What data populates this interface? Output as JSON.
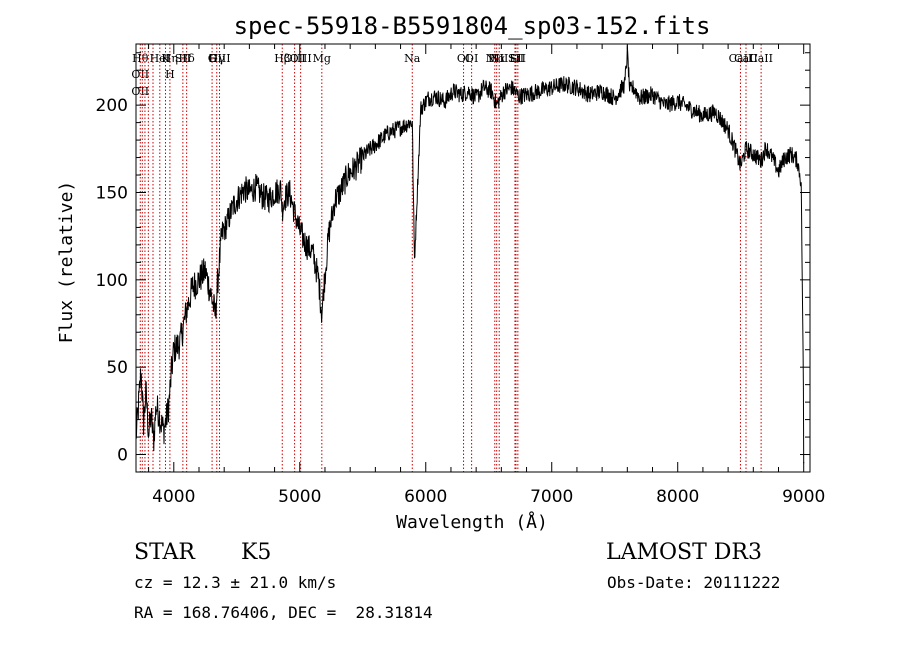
{
  "chart_data": {
    "type": "line",
    "title": "spec-55918-B5591804_sp03-152.fits",
    "xlabel": "Wavelength (Å)",
    "ylabel": "Flux (relative)",
    "xlim": [
      3700,
      9050
    ],
    "ylim": [
      -10,
      235
    ],
    "xticks": [
      4000,
      5000,
      6000,
      7000,
      8000,
      9000
    ],
    "yticks": [
      0,
      50,
      100,
      150,
      200
    ],
    "grid": false,
    "line_color": "#000000",
    "marker_color": "#cc0000",
    "series": [
      {
        "x": [
          3700,
          3720,
          3740,
          3760,
          3780,
          3800,
          3820,
          3840,
          3860,
          3880,
          3900,
          3920,
          3940,
          3960,
          3980,
          4000,
          4050,
          4100,
          4150,
          4200,
          4250,
          4300,
          4330,
          4350,
          4380,
          4420,
          4470,
          4520,
          4560,
          4600,
          4650,
          4700,
          4750,
          4800,
          4850,
          4861,
          4880,
          4920,
          4960,
          5000,
          5050,
          5100,
          5150,
          5175,
          5190,
          5230,
          5280,
          5320,
          5380,
          5450,
          5520,
          5580,
          5640,
          5700,
          5760,
          5820,
          5870,
          5893,
          5910,
          5960,
          6020,
          6080,
          6150,
          6220,
          6280,
          6340,
          6400,
          6460,
          6520,
          6563,
          6620,
          6680,
          6740,
          6800,
          6900,
          7000,
          7100,
          7200,
          7300,
          7400,
          7500,
          7580,
          7600,
          7620,
          7650,
          7700,
          7800,
          7900,
          8000,
          8100,
          8200,
          8300,
          8400,
          8450,
          8498,
          8542,
          8600,
          8662,
          8700,
          8750,
          8800,
          8850,
          8900,
          8950,
          8980,
          9000
        ],
        "y": [
          10,
          28,
          48,
          18,
          36,
          12,
          22,
          8,
          28,
          24,
          18,
          14,
          20,
          28,
          46,
          60,
          64,
          82,
          96,
          100,
          105,
          90,
          80,
          100,
          125,
          132,
          142,
          148,
          152,
          150,
          153,
          148,
          146,
          150,
          152,
          140,
          147,
          150,
          138,
          128,
          120,
          116,
          100,
          80,
          95,
          126,
          146,
          150,
          160,
          165,
          172,
          176,
          180,
          184,
          186,
          188,
          190,
          190,
          110,
          198,
          204,
          205,
          202,
          208,
          206,
          208,
          204,
          210,
          208,
          200,
          208,
          210,
          205,
          206,
          208,
          210,
          212,
          210,
          206,
          208,
          204,
          212,
          230,
          208,
          210,
          204,
          206,
          200,
          202,
          198,
          194,
          196,
          186,
          176,
          165,
          175,
          172,
          168,
          176,
          170,
          162,
          170,
          172,
          168,
          156,
          25
        ]
      }
    ],
    "line_markers": [
      {
        "w": 3734,
        "labels": [
          "Hθ",
          "OII",
          "OII"
        ]
      },
      {
        "w": 3750,
        "labels": []
      },
      {
        "w": 3771,
        "labels": []
      },
      {
        "w": 3798,
        "labels": []
      },
      {
        "w": 3835,
        "labels": []
      },
      {
        "w": 3889,
        "labels": [
          "HeI"
        ]
      },
      {
        "w": 3934,
        "labels": [
          "K"
        ]
      },
      {
        "w": 3969,
        "labels": [
          "Hη",
          "H"
        ]
      },
      {
        "w": 4072,
        "labels": [
          "SII"
        ]
      },
      {
        "w": 4102,
        "labels": [
          "Hδ"
        ]
      },
      {
        "w": 4304,
        "labels": [
          "G"
        ]
      },
      {
        "w": 4341,
        "labels": [
          "Hγ"
        ]
      },
      {
        "w": 4363,
        "labels": [
          "OIII"
        ]
      },
      {
        "w": 4861,
        "labels": [
          "Hβ"
        ]
      },
      {
        "w": 4959,
        "labels": [
          "OIII"
        ]
      },
      {
        "w": 5007,
        "labels": [
          "OIII"
        ]
      },
      {
        "w": 5175,
        "labels": [
          "Mg"
        ]
      },
      {
        "w": 5893,
        "labels": [
          "Na"
        ]
      },
      {
        "w": 6300,
        "labels": [
          "OI"
        ]
      },
      {
        "w": 6364,
        "labels": [
          "OI"
        ]
      },
      {
        "w": 6548,
        "labels": [
          "NII"
        ]
      },
      {
        "w": 6563,
        "labels": [
          "Hα"
        ]
      },
      {
        "w": 6583,
        "labels": [
          "NII"
        ]
      },
      {
        "w": 6708,
        "labels": [
          "Li"
        ]
      },
      {
        "w": 6716,
        "labels": [
          "SII"
        ]
      },
      {
        "w": 6731,
        "labels": [
          "SII"
        ]
      },
      {
        "w": 8498,
        "labels": [
          "CaII"
        ]
      },
      {
        "w": 8542,
        "labels": [
          "CaII"
        ]
      },
      {
        "w": 8662,
        "labels": [
          "CaII"
        ]
      }
    ]
  },
  "info": {
    "class": "STAR",
    "subclass": "K5",
    "survey": "LAMOST DR3",
    "cz": "cz = 12.3 ± 21.0 km/s",
    "obs_date": "Obs-Date: 20111222",
    "coords": "RA = 168.76406, DEC =  28.31814"
  }
}
